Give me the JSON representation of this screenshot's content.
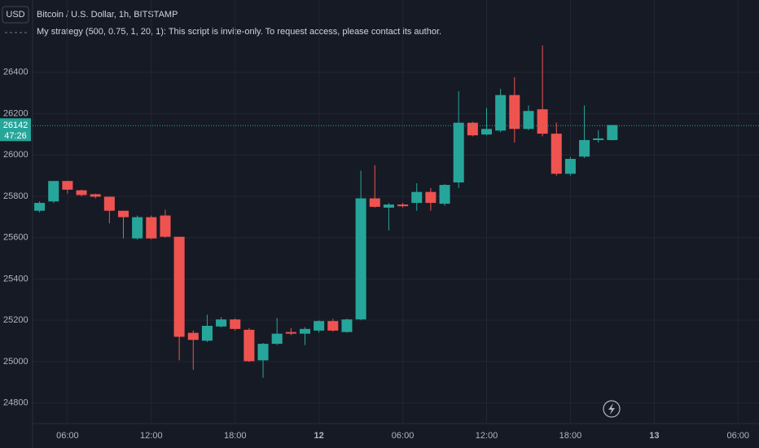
{
  "chart_data": {
    "type": "candlestick",
    "currency": "USD",
    "title": "Bitcoin / U.S. Dollar, 1h, BITSTAMP",
    "subtitle": "My strategy (500, 0.75, 1, 20, 1): This script is invite-only. To request access, please contact its author.",
    "up_color": "#26a69a",
    "down_color": "#ef5350",
    "open": [
      25730,
      25775,
      25874,
      25829,
      25810,
      25798,
      25730,
      25596,
      25699,
      25707,
      25604,
      25139,
      25101,
      25170,
      25204,
      25154,
      25006,
      25086,
      25143,
      25135,
      25150,
      25196,
      25143,
      25204,
      25790,
      25745,
      25760,
      25768,
      25821,
      25764,
      25867,
      26156,
      26099,
      26118,
      26290,
      26126,
      26221,
      26103,
      25909,
      25992,
      26072,
      26072
    ],
    "high": [
      25776,
      25874,
      25874,
      25832,
      25813,
      25798,
      25730,
      25707,
      25707,
      25735,
      25604,
      25151,
      25227,
      25215,
      25210,
      25162,
      25090,
      25211,
      25162,
      25166,
      25200,
      25207,
      25208,
      25924,
      25950,
      25768,
      25768,
      25863,
      25840,
      25860,
      26309,
      26160,
      26228,
      26320,
      26377,
      26240,
      26530,
      26156,
      25990,
      26240,
      26120,
      26145
    ],
    "low": [
      25722,
      25768,
      25813,
      25800,
      25790,
      25669,
      25596,
      25590,
      25592,
      25600,
      25006,
      24960,
      25095,
      25165,
      25150,
      24998,
      24922,
      25080,
      25128,
      25080,
      25140,
      25145,
      25140,
      25200,
      25745,
      25635,
      25745,
      25730,
      25730,
      25755,
      25840,
      26090,
      26095,
      26110,
      26060,
      26120,
      26090,
      25900,
      25900,
      25985,
      26060,
      26070
    ],
    "close": [
      25768,
      25874,
      25832,
      25806,
      25798,
      25730,
      25699,
      25699,
      25596,
      25604,
      25120,
      25105,
      25173,
      25204,
      25158,
      25002,
      25086,
      25135,
      25135,
      25158,
      25196,
      25150,
      25204,
      25790,
      25749,
      25760,
      25752,
      25821,
      25768,
      25855,
      26156,
      26095,
      26126,
      26290,
      26126,
      26213,
      26103,
      25909,
      25981,
      26072,
      26080,
      26145
    ],
    "last_price": 26142,
    "countdown": "47:26",
    "xlim": [
      -0.5,
      51.5
    ],
    "xticks": [
      {
        "value": 2,
        "label": "06:00"
      },
      {
        "value": 8,
        "label": "12:00"
      },
      {
        "value": 14,
        "label": "18:00"
      },
      {
        "value": 20,
        "label": "12"
      },
      {
        "value": 26,
        "label": "06:00"
      },
      {
        "value": 32,
        "label": "12:00"
      },
      {
        "value": 38,
        "label": "18:00"
      },
      {
        "value": 44,
        "label": "13"
      },
      {
        "value": 50,
        "label": "06:00"
      }
    ],
    "ylim": [
      24700,
      26750
    ],
    "yticks": [
      24800,
      25000,
      25200,
      25400,
      25600,
      25800,
      26000,
      26200,
      26400
    ],
    "grid": true
  }
}
